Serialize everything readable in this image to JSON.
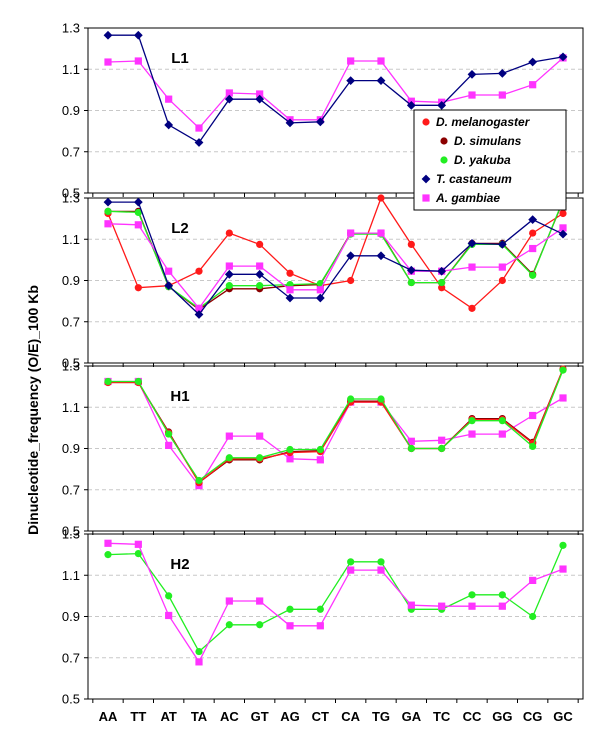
{
  "chart_data": {
    "type": "line",
    "ylabel": "Dinucleotide_frequency (O/E)_100 Kb",
    "categories": [
      "AA",
      "TT",
      "AT",
      "TA",
      "AC",
      "GT",
      "AG",
      "CT",
      "CA",
      "TG",
      "GA",
      "TC",
      "CC",
      "GG",
      "CG",
      "GC"
    ],
    "legend": {
      "placement": "inside panel L1, right side",
      "entries": [
        {
          "name": "D. melanogaster",
          "color": "#ff1a1a",
          "marker": "circle"
        },
        {
          "name": "D. simulans",
          "color": "#8b0000",
          "marker": "circle"
        },
        {
          "name": "D. yakuba",
          "color": "#22ee22",
          "marker": "circle"
        },
        {
          "name": "T. castaneum",
          "color": "#000080",
          "marker": "diamond"
        },
        {
          "name": "A. gambiae",
          "color": "#ff33ff",
          "marker": "square"
        }
      ]
    },
    "panels": [
      {
        "label": "L1",
        "ylim": [
          0.5,
          1.3
        ],
        "yticks": [
          "0.5",
          "0.7",
          "0.9",
          "1.1",
          "1.3"
        ],
        "series": [
          {
            "name": "A. gambiae",
            "values": [
              1.135,
              1.14,
              0.955,
              0.815,
              0.985,
              0.98,
              0.855,
              0.855,
              1.14,
              1.14,
              0.945,
              0.94,
              0.975,
              0.975,
              1.025,
              1.155
            ]
          },
          {
            "name": "T. castaneum",
            "values": [
              1.265,
              1.265,
              0.83,
              0.745,
              0.955,
              0.955,
              0.84,
              0.845,
              1.045,
              1.045,
              0.925,
              0.925,
              1.075,
              1.08,
              1.135,
              1.16
            ]
          }
        ]
      },
      {
        "label": "L2",
        "ylim": [
          0.5,
          1.3
        ],
        "yticks": [
          "0.5",
          "0.7",
          "0.9",
          "1.1",
          "1.3"
        ],
        "series": [
          {
            "name": "D. melanogaster",
            "values": [
              1.225,
              0.865,
              0.875,
              0.945,
              1.13,
              1.075,
              0.935,
              0.875,
              0.9,
              1.3,
              1.075,
              0.865,
              0.765,
              0.9,
              1.13,
              1.225
            ]
          },
          {
            "name": "D. simulans",
            "values": [
              1.235,
              1.235,
              0.87,
              0.76,
              0.86,
              0.86,
              0.875,
              0.88,
              1.13,
              1.13,
              0.89,
              0.89,
              1.08,
              1.08,
              0.93,
              1.285
            ]
          },
          {
            "name": "D. yakuba",
            "values": [
              1.235,
              1.23,
              0.87,
              0.765,
              0.875,
              0.875,
              0.88,
              0.885,
              1.125,
              1.125,
              0.89,
              0.89,
              1.075,
              1.075,
              0.925,
              1.29
            ]
          },
          {
            "name": "A. gambiae",
            "values": [
              1.175,
              1.17,
              0.945,
              0.765,
              0.97,
              0.97,
              0.855,
              0.855,
              1.13,
              1.13,
              0.945,
              0.945,
              0.965,
              0.965,
              1.055,
              1.155
            ]
          },
          {
            "name": "T. castaneum",
            "values": [
              1.28,
              1.28,
              0.875,
              0.735,
              0.93,
              0.93,
              0.815,
              0.815,
              1.02,
              1.02,
              0.95,
              0.945,
              1.08,
              1.075,
              1.195,
              1.125
            ]
          }
        ]
      },
      {
        "label": "H1",
        "ylim": [
          0.5,
          1.3
        ],
        "yticks": [
          "0.5",
          "0.7",
          "0.9",
          "1.1",
          "1.3"
        ],
        "series": [
          {
            "name": "A. gambiae",
            "values": [
              1.225,
              1.225,
              0.915,
              0.72,
              0.96,
              0.96,
              0.85,
              0.845,
              1.125,
              1.125,
              0.935,
              0.94,
              0.97,
              0.97,
              1.06,
              1.145
            ]
          },
          {
            "name": "D. simulans",
            "values": [
              1.22,
              1.22,
              0.98,
              0.735,
              0.845,
              0.845,
              0.885,
              0.89,
              1.13,
              1.13,
              0.9,
              0.9,
              1.045,
              1.045,
              0.93,
              1.285
            ]
          },
          {
            "name": "D. melanogaster",
            "values": [
              1.22,
              1.22,
              0.975,
              0.735,
              0.85,
              0.85,
              0.88,
              0.885,
              1.125,
              1.125,
              0.9,
              0.9,
              1.04,
              1.04,
              0.925,
              1.285
            ]
          },
          {
            "name": "D. yakuba",
            "values": [
              1.225,
              1.225,
              0.97,
              0.745,
              0.855,
              0.855,
              0.895,
              0.895,
              1.14,
              1.14,
              0.9,
              0.9,
              1.035,
              1.035,
              0.91,
              1.28
            ]
          }
        ]
      },
      {
        "label": "H2",
        "ylim": [
          0.5,
          1.3
        ],
        "yticks": [
          "0.5",
          "0.7",
          "0.9",
          "1.1",
          "1.3"
        ],
        "series": [
          {
            "name": "D. yakuba",
            "values": [
              1.2,
              1.205,
              1.0,
              0.73,
              0.86,
              0.86,
              0.935,
              0.935,
              1.165,
              1.165,
              0.935,
              0.935,
              1.005,
              1.005,
              0.9,
              1.245
            ]
          },
          {
            "name": "A. gambiae",
            "values": [
              1.255,
              1.25,
              0.905,
              0.68,
              0.975,
              0.975,
              0.855,
              0.855,
              1.125,
              1.125,
              0.955,
              0.95,
              0.95,
              0.95,
              1.075,
              1.13
            ]
          }
        ]
      }
    ]
  }
}
